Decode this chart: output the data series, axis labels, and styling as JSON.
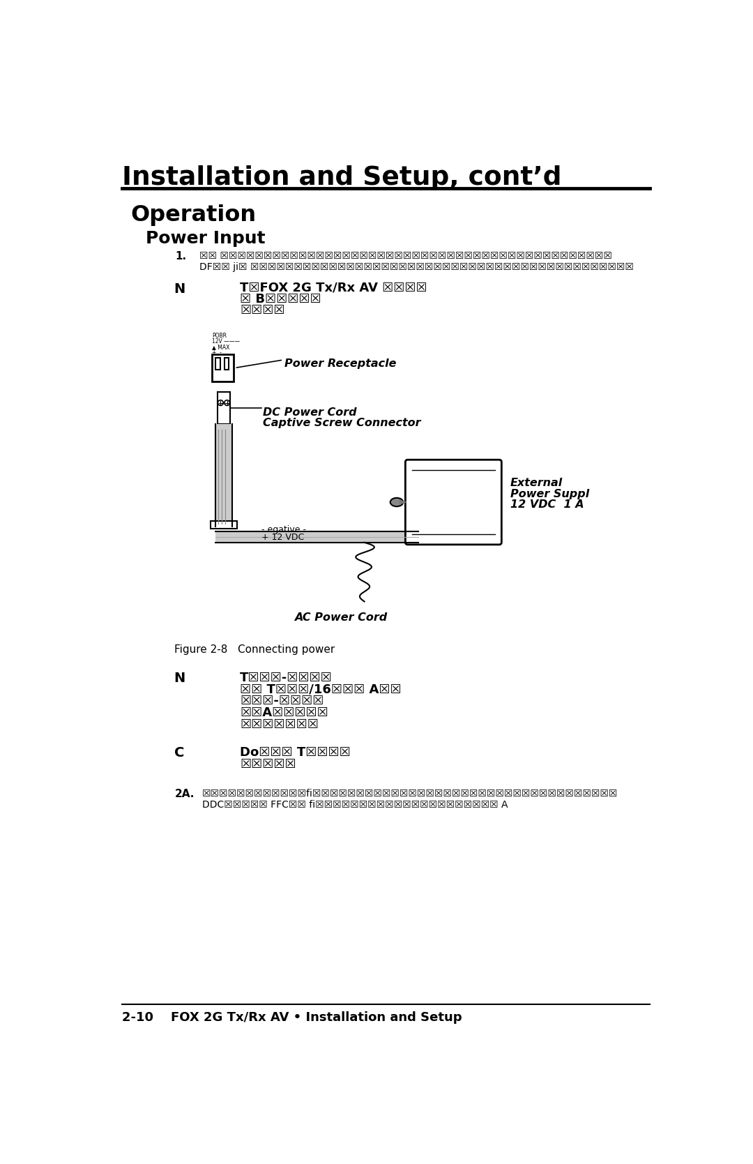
{
  "title": "Installation and Setup, cont’d",
  "section": "Operation",
  "subsection": "Power Input",
  "bg_color": "#ffffff",
  "text_color": "#000000",
  "footer_text": "2-10    FOX 2G Tx/Rx AV • Installation and Setup",
  "figure_caption": "Figure 2-8   Connecting power",
  "step1_label": "1.",
  "step1_text1": "☒☒ ☒☒☒☒☒☒☒☒☒☒☒☒☒☒☒☒☒☒☒☒☒☒☒☒☒☒☒☒☒☒☒☒☒☒☒☒☒☒☒☒☒☒☒☒☒",
  "step1_text2": "DF☒☒ ji☒ ☒☒☒☒☒☒☒☒☒☒☒☒☒☒☒☒☒☒☒☒☒☒☒☒☒☒☒☒☒☒☒☒☒☒☒☒☒☒☒☒☒☒☒☒",
  "note1_label": "N",
  "note1_line1": "T☒FOX 2G Tx/Rx AV ☒☒☒☒",
  "note1_line2": "☒ B☒☒☒☒☒",
  "note1_line3": "☒☒☒☒",
  "power_receptacle_label": "Power Receptacle",
  "dc_cord_label1": "DC Power Cord",
  "dc_cord_label2": "Captive Screw Connector",
  "polarity_label1": "- egative -",
  "polarity_label2": "+ 12 VDC",
  "ext_supply_label1": "External",
  "ext_supply_label2": "Power Suppl",
  "ext_supply_label3": "12 VDC  1 A",
  "ac_cord_label": "AC Power Cord",
  "note2_label": "N",
  "note2_line1": "T☒☒☒-☒☒☒☒",
  "note2_line2": "☒☒ T☒☒☒/16☒☒☒ A☒☒",
  "note2_line3": "☒☒☒-☒☒☒☒",
  "note2_line4": "☒☒A☒☒☒☒☒",
  "note2_line5": "☒☒☒☒☒☒☒",
  "note3_label": "C",
  "note3_line1": "Do☒☒☒ T☒☒☒☒",
  "note3_line2": "☒☒☒☒☒",
  "step2_label": "2A.",
  "step2_text": "☒☒☒☒☒☒☒☒☒☒☒☒fi☒☒☒☒☒☒☒☒☒☒☒☒☒☒☒☒☒☒☒☒☒☒☒☒☒☒☒☒☒☒☒☒☒☒☒",
  "step2_text2": "DDC☒☒☒☒☒ FFC☒☒ fi☒☒☒☒☒☒☒☒☒☒☒☒☒☒☒☒☒☒☒☒☒ A"
}
